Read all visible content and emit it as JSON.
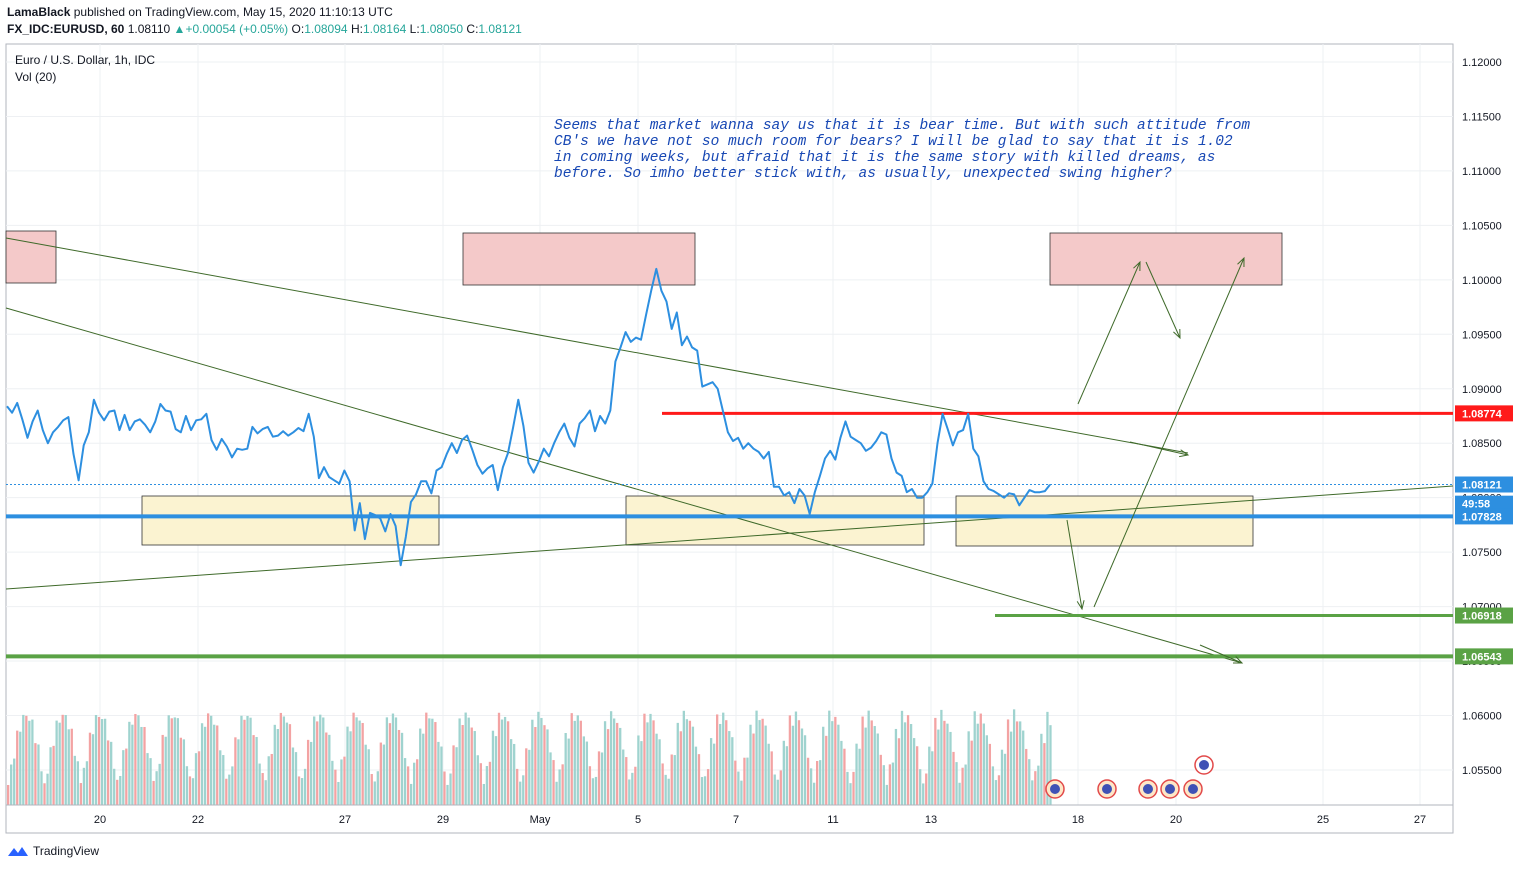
{
  "header": {
    "author": "LamaBlack",
    "published_text": "published on TradingView.com, May 15, 2020 11:10:13 UTC",
    "symbol": "FX_IDC:EURUSD, 60",
    "last": "1.08110",
    "change": "+0.00054 (+0.05%)",
    "o_label": "O:",
    "o_val": "1.08094",
    "h_label": "H:",
    "h_val": "1.08164",
    "l_label": "L:",
    "l_val": "1.08050",
    "c_label": "C:",
    "c_val": "1.08121"
  },
  "legend": {
    "title": "Euro / U.S. Dollar, 1h, IDC",
    "vol": "Vol (20)"
  },
  "annotation": "Seems that market wanna say us that it is bear time. But with such attitude from\nCB's we have not so much room for bears? I will be glad to say that it is 1.02\nin coming weeks, but afraid that it is the same story with killed dreams, as\nbefore. So imho better stick with, as usually, unexpected swing higher?",
  "footer": {
    "brand": "TradingView"
  },
  "colors": {
    "price_line": "#2d8fe0",
    "resistance": "#ff1a1a",
    "support_blue": "#2d8fe0",
    "support_green": "#5aa245",
    "trend": "#3f6a2a",
    "zone_red": "#f4c9c9",
    "zone_yellow": "#fbf3d1",
    "vol_up": "#9fd3cf",
    "vol_down": "#f3a3a3"
  },
  "chart_data": {
    "type": "line",
    "title": "Euro / U.S. Dollar, 1h, IDC",
    "xlabel": "",
    "ylabel": "",
    "x_ticks": [
      "20",
      "22",
      "27",
      "29",
      "May",
      "5",
      "7",
      "11",
      "13",
      "18",
      "20",
      "25",
      "27"
    ],
    "y_ticks": [
      "1.12000",
      "1.11500",
      "1.11000",
      "1.10500",
      "1.10000",
      "1.09500",
      "1.09000",
      "1.08500",
      "1.08000",
      "1.07500",
      "1.07000",
      "1.06500",
      "1.06000",
      "1.05500"
    ],
    "ylim": [
      1.0525,
      1.1215
    ],
    "price_labels": [
      {
        "text": "1.08774",
        "value": 1.08774,
        "color": "#ff1a1a"
      },
      {
        "text": "1.08121",
        "value": 1.08121,
        "color": "#2d8fe0"
      },
      {
        "text": "49:58",
        "value": 1.07945,
        "color": "#2d8fe0"
      },
      {
        "text": "1.07828",
        "value": 1.07828,
        "color": "#2d8fe0"
      },
      {
        "text": "1.06918",
        "value": 1.06918,
        "color": "#5aa245"
      },
      {
        "text": "1.06543",
        "value": 1.06543,
        "color": "#5aa245"
      }
    ],
    "horizontal_levels": [
      {
        "name": "resistance",
        "value": 1.08774,
        "color": "#ff1a1a"
      },
      {
        "name": "support-blue",
        "value": 1.07828,
        "color": "#2d8fe0"
      },
      {
        "name": "support-green-upper",
        "value": 1.06918,
        "color": "#5aa245"
      },
      {
        "name": "support-green-lower",
        "value": 1.06543,
        "color": "#5aa245"
      }
    ],
    "series": [
      {
        "values": [
          1.0884,
          1.0878,
          1.0887,
          1.0872,
          1.0855,
          1.087,
          1.088,
          1.0862,
          1.085,
          1.086,
          1.0865,
          1.0871,
          1.0874,
          1.084,
          1.0816,
          1.0848,
          1.086,
          1.089,
          1.0878,
          1.0871,
          1.0879,
          1.088,
          1.0862,
          1.0876,
          1.0862,
          1.087,
          1.0872,
          1.0867,
          1.086,
          1.087,
          1.0886,
          1.088,
          1.0879,
          1.0863,
          1.086,
          1.0875,
          1.0862,
          1.0871,
          1.0872,
          1.0877,
          1.0853,
          1.0844,
          1.0854,
          1.0847,
          1.0837,
          1.0845,
          1.0844,
          1.0845,
          1.0865,
          1.0859,
          1.0863,
          1.0865,
          1.0856,
          1.0857,
          1.0861,
          1.0857,
          1.086,
          1.0864,
          1.0861,
          1.0877,
          1.0856,
          1.0818,
          1.0828,
          1.0819,
          1.0816,
          1.0813,
          1.0825,
          1.0815,
          1.077,
          1.0795,
          1.0762,
          1.0786,
          1.0784,
          1.0781,
          1.0769,
          1.0785,
          1.0774,
          1.0738,
          1.0764,
          1.0796,
          1.0803,
          1.0815,
          1.0815,
          1.0804,
          1.0825,
          1.0828,
          1.084,
          1.085,
          1.0841,
          1.0853,
          1.0857,
          1.0844,
          1.083,
          1.0822,
          1.0827,
          1.083,
          1.0807,
          1.0828,
          1.0841,
          1.0865,
          1.089,
          1.0866,
          1.0832,
          1.0823,
          1.0833,
          1.0845,
          1.0838,
          1.085,
          1.086,
          1.0868,
          1.0855,
          1.0847,
          1.0868,
          1.0873,
          1.088,
          1.0861,
          1.0875,
          1.0868,
          1.088,
          1.0925,
          1.0938,
          1.0952,
          1.0943,
          1.0947,
          1.0945,
          1.0968,
          1.099,
          1.101,
          1.099,
          1.098,
          1.0955,
          1.097,
          1.094,
          1.0948,
          1.0938,
          1.0935,
          1.0902,
          1.0904,
          1.0906,
          1.09,
          1.088,
          1.086,
          1.0852,
          1.0855,
          1.0845,
          1.085,
          1.0845,
          1.0842,
          1.0836,
          1.0842,
          1.081,
          1.081,
          1.0802,
          1.0805,
          1.0795,
          1.0808,
          1.0802,
          1.0785,
          1.0805,
          1.082,
          1.0836,
          1.0843,
          1.0835,
          1.0855,
          1.087,
          1.0856,
          1.0853,
          1.085,
          1.0843,
          1.0846,
          1.0852,
          1.086,
          1.0858,
          1.0836,
          1.0823,
          1.082,
          1.0805,
          1.0808,
          1.08,
          1.08,
          1.0805,
          1.0813,
          1.085,
          1.0877,
          1.0863,
          1.0848,
          1.086,
          1.0862,
          1.0877,
          1.0845,
          1.0838,
          1.0815,
          1.0808,
          1.0806,
          1.0803,
          1.08,
          1.0804,
          1.0803,
          1.0793,
          1.08,
          1.0807,
          1.0805,
          1.0805,
          1.0806,
          1.0812
        ]
      }
    ]
  }
}
